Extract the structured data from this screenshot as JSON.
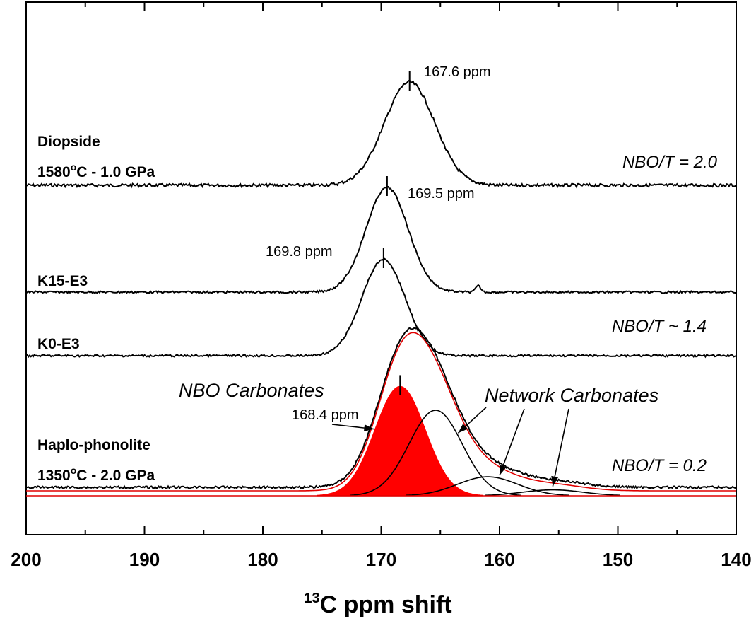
{
  "chart_data": {
    "type": "line",
    "title": "",
    "xlabel": {
      "sup": "13",
      "text": "C ppm shift"
    },
    "ylabel": "",
    "xlim": [
      200,
      140
    ],
    "x_reversed": true,
    "x_ticks": [
      200,
      190,
      180,
      170,
      160,
      150,
      140
    ],
    "x_tick_labels": [
      "200",
      "190",
      "180",
      "170",
      "160",
      "150",
      "140"
    ],
    "y_ticks": false,
    "grid": false,
    "samples": [
      {
        "id": "diopside",
        "name_line1": "Diopside",
        "name_line2_pre": "1580",
        "name_line2_sup": "o",
        "name_line2_post": "C - 1.0 GPa",
        "nbo_t": "NBO/T = 2.0"
      },
      {
        "id": "k15",
        "name_line1": "K15-E3"
      },
      {
        "id": "k0",
        "name_line1": "K0-E3",
        "nbo_t": "NBO/T ~ 1.4"
      },
      {
        "id": "haplo",
        "name_line1": "Haplo-phonolite",
        "name_line2_pre": "1350",
        "name_line2_sup": "o",
        "name_line2_post": "C - 2.0 GPa",
        "nbo_t": "NBO/T = 0.2"
      }
    ],
    "series": [
      {
        "sample": "diopside",
        "role": "spectrum",
        "color": "#000000",
        "baseline": 0.0,
        "peaks": [
          {
            "center": 167.6,
            "fwhm": 5.0,
            "height": 1.0
          }
        ]
      },
      {
        "sample": "k15",
        "role": "spectrum",
        "color": "#000000",
        "baseline": 0.0,
        "peaks": [
          {
            "center": 169.5,
            "fwhm": 4.2,
            "height": 1.0
          },
          {
            "center": 161.8,
            "fwhm": 0.5,
            "height": 0.06
          }
        ]
      },
      {
        "sample": "k0",
        "role": "spectrum",
        "color": "#000000",
        "baseline": 0.0,
        "peaks": [
          {
            "center": 169.8,
            "fwhm": 4.3,
            "height": 1.0
          }
        ]
      },
      {
        "sample": "haplo",
        "role": "spectrum",
        "color": "#000000",
        "peaks": [
          {
            "center": 168.4,
            "fwhm": 5.0,
            "height": 0.92
          },
          {
            "center": 165.4,
            "fwhm": 5.3,
            "height": 0.72
          },
          {
            "center": 161.0,
            "fwhm": 6.0,
            "height": 0.16
          },
          {
            "center": 155.5,
            "fwhm": 6.0,
            "height": 0.05
          }
        ]
      },
      {
        "sample": "haplo",
        "role": "fit-sum",
        "color": "#e00000",
        "peaks": [
          {
            "center": 168.4,
            "fwhm": 5.0,
            "height": 0.92
          },
          {
            "center": 165.4,
            "fwhm": 5.3,
            "height": 0.72
          },
          {
            "center": 161.0,
            "fwhm": 6.0,
            "height": 0.16
          },
          {
            "center": 155.5,
            "fwhm": 6.0,
            "height": 0.05
          }
        ]
      },
      {
        "sample": "haplo",
        "role": "component-nbo",
        "color": "#ff0000",
        "filled": true,
        "peaks": [
          {
            "center": 168.4,
            "fwhm": 5.0,
            "height": 0.92
          }
        ]
      },
      {
        "sample": "haplo",
        "role": "component-network",
        "color": "#000000",
        "peaks": [
          {
            "center": 165.4,
            "fwhm": 5.3,
            "height": 0.72
          }
        ]
      },
      {
        "sample": "haplo",
        "role": "component-network",
        "color": "#000000",
        "peaks": [
          {
            "center": 161.0,
            "fwhm": 6.0,
            "height": 0.16
          }
        ]
      },
      {
        "sample": "haplo",
        "role": "component-network",
        "color": "#000000",
        "peaks": [
          {
            "center": 155.5,
            "fwhm": 6.0,
            "height": 0.05
          }
        ]
      }
    ],
    "peak_annotations": [
      {
        "sample": "diopside",
        "x": 167.6,
        "label": "167.6 ppm"
      },
      {
        "sample": "k15",
        "x": 169.5,
        "label": "169.5 ppm"
      },
      {
        "sample": "k0",
        "x": 169.8,
        "label": "169.8 ppm"
      },
      {
        "sample": "haplo",
        "x": 168.4,
        "label": "168.4 ppm"
      }
    ],
    "group_annotations": [
      {
        "label": "NBO Carbonates",
        "points_to": [
          168.4
        ]
      },
      {
        "label": "Network Carbonates",
        "points_to": [
          165.4,
          161.0,
          155.5
        ]
      }
    ],
    "colors": {
      "axis": "#000000",
      "fit": "#e00000",
      "fill": "#ff0000"
    }
  }
}
